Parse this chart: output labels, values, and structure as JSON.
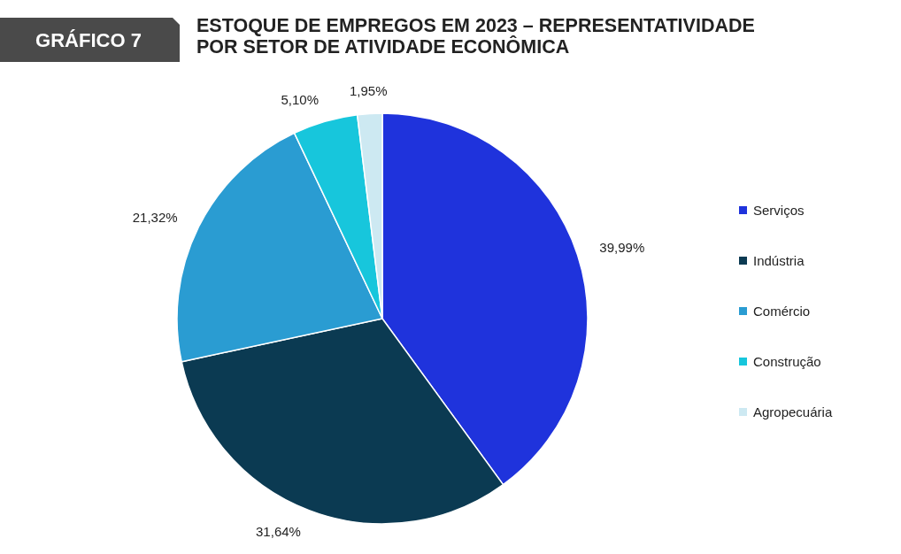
{
  "chart_data": {
    "type": "pie",
    "title": "ESTOQUE DE EMPREGOS EM 2023 – REPRESENTATIVIDADE POR SETOR DE ATIVIDADE ECONÔMICA",
    "annotations": [
      "GRÁFICO 7"
    ],
    "categories": [
      "Serviços",
      "Indústria",
      "Comércio",
      "Construção",
      "Agropecuária"
    ],
    "values": [
      39.99,
      31.64,
      21.32,
      5.1,
      1.95
    ],
    "colors": [
      "#1f33dc",
      "#0b3a52",
      "#2a9cd2",
      "#17c6dc",
      "#cde9f2"
    ],
    "value_labels": [
      "39,99%",
      "31,64%",
      "21,32%",
      "5,10%",
      "1,95%"
    ],
    "legend": "right"
  }
}
